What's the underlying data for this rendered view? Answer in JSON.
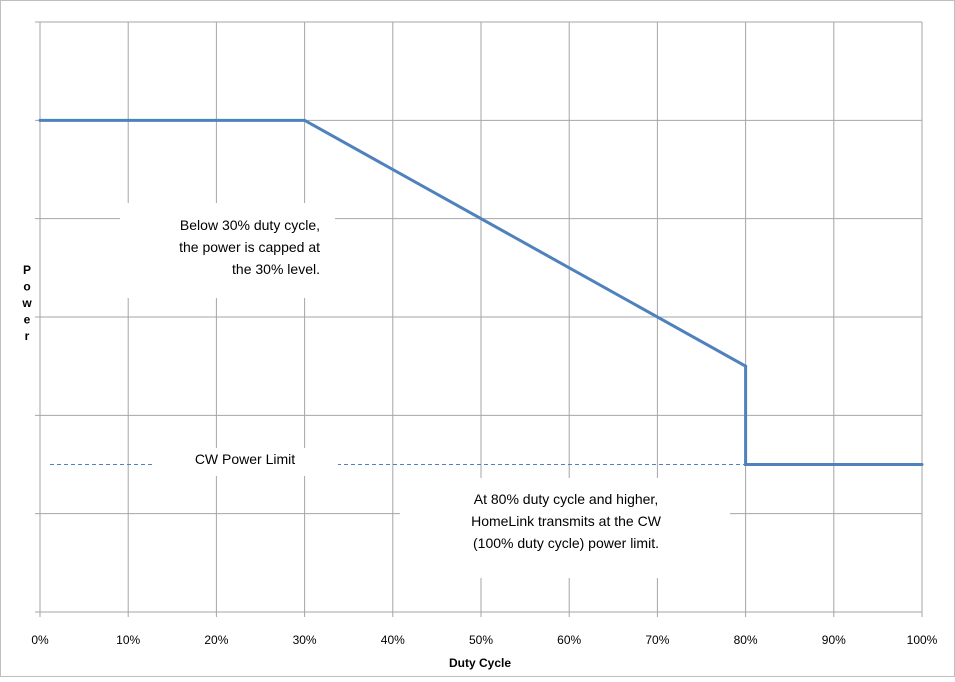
{
  "chart_data": {
    "type": "line",
    "title": "",
    "xlabel": "Duty Cycle",
    "ylabel": "Power",
    "xlim": [
      0,
      100
    ],
    "x_tick_labels": [
      "0%",
      "10%",
      "20%",
      "30%",
      "40%",
      "50%",
      "60%",
      "70%",
      "80%",
      "90%",
      "100%"
    ],
    "y_tick_labels": [],
    "grid": true,
    "legend": "none",
    "series": [
      {
        "x": [
          0,
          30,
          80,
          80,
          100
        ],
        "y": [
          5,
          5,
          2.5,
          1.5,
          1.5
        ],
        "color": "#4f81bd"
      }
    ],
    "reference_line": {
      "label": "CW Power Limit",
      "y": 1.5,
      "style": "dashed",
      "color": "#4f81bd"
    },
    "annotations": [
      {
        "lines": [
          "Below 30% duty cycle,",
          "the power is capped at",
          "the 30% level."
        ]
      },
      {
        "lines": [
          "At 80% duty cycle and higher,",
          "HomeLink transmits at the CW",
          "(100% duty cycle) power limit."
        ]
      }
    ],
    "grid_color": "#a6a6a6"
  }
}
